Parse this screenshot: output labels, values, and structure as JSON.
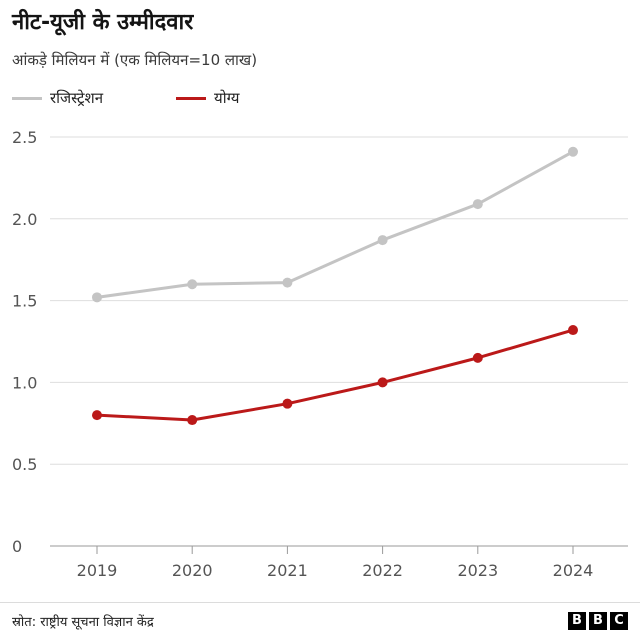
{
  "header": {
    "title": "नीट-यूजी के उम्मीदवार",
    "subtitle": "आंकड़े मिलियन में (एक मिलियन=10 लाख)"
  },
  "legend": [
    {
      "label": "रजिस्ट्रेशन",
      "color": "#c4c4c4"
    },
    {
      "label": "योग्य",
      "color": "#bb1919"
    }
  ],
  "footer": {
    "source": "स्रोत: राष्ट्रीय सूचना विज्ञान केंद्र",
    "logo_letters": [
      "B",
      "B",
      "C"
    ]
  },
  "chart_data": {
    "type": "line",
    "x": [
      2019,
      2020,
      2021,
      2022,
      2023,
      2024
    ],
    "x_tick_labels": [
      "2019",
      "2020",
      "2021",
      "2022",
      "2023",
      "2024"
    ],
    "y_ticks": [
      0,
      0.5,
      1.0,
      1.5,
      2.0,
      2.5
    ],
    "y_tick_labels": [
      "0",
      "0.5",
      "1.0",
      "1.5",
      "2.0",
      "2.5"
    ],
    "ylim": [
      0,
      2.5
    ],
    "grid": true,
    "legend_position": "top-left",
    "series": [
      {
        "name": "रजिस्ट्रेशन",
        "color": "#c4c4c4",
        "values": [
          1.52,
          1.6,
          1.61,
          1.87,
          2.09,
          2.41
        ]
      },
      {
        "name": "योग्य",
        "color": "#bb1919",
        "values": [
          0.8,
          0.77,
          0.87,
          1.0,
          1.15,
          1.32
        ]
      }
    ]
  }
}
